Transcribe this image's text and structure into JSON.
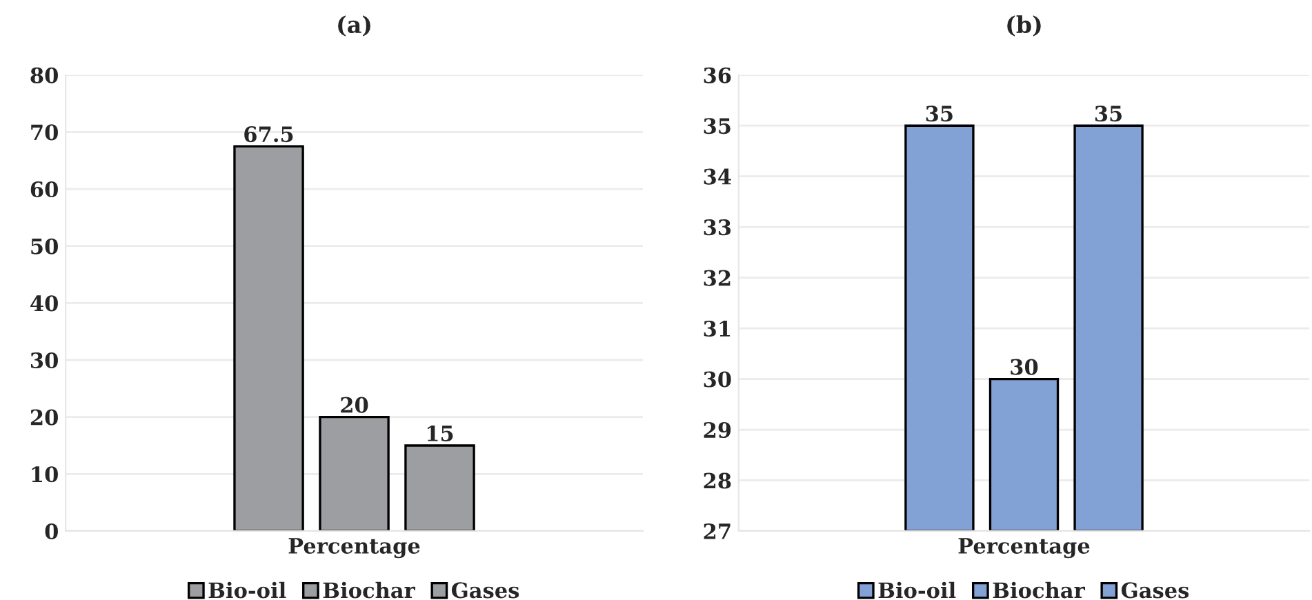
{
  "chart_data": [
    {
      "type": "bar",
      "title": "(a)",
      "categories": [
        "Percentage"
      ],
      "series": [
        {
          "name": "Bio-oil",
          "color": "#9c9ea1",
          "values": [
            67.5
          ]
        },
        {
          "name": "Biochar",
          "color": "#9c9ea1",
          "values": [
            20
          ]
        },
        {
          "name": "Gases",
          "color": "#9c9ea1",
          "values": [
            15
          ]
        }
      ],
      "ylim": [
        0,
        80
      ],
      "yticks": [
        0,
        10,
        20,
        30,
        40,
        50,
        60,
        70,
        80
      ],
      "grid": "y",
      "legend": "bottom",
      "data_labels": true
    },
    {
      "type": "bar",
      "title": "(b)",
      "categories": [
        "Percentage"
      ],
      "series": [
        {
          "name": "Bio-oil",
          "color": "#82a2d6",
          "values": [
            35
          ]
        },
        {
          "name": "Biochar",
          "color": "#82a2d6",
          "values": [
            30
          ]
        },
        {
          "name": "Gases",
          "color": "#82a2d6",
          "values": [
            35
          ]
        }
      ],
      "ylim": [
        27,
        36
      ],
      "yticks": [
        27,
        28,
        29,
        30,
        31,
        32,
        33,
        34,
        35,
        36
      ],
      "grid": "y",
      "legend": "bottom",
      "data_labels": true
    }
  ]
}
